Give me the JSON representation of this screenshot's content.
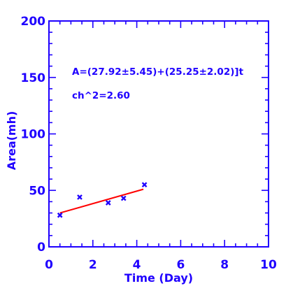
{
  "chart_data": {
    "type": "scatter",
    "xlabel": "Time (Day)",
    "ylabel": "Area(mh)",
    "xlim": [
      0,
      10
    ],
    "ylim": [
      0,
      200
    ],
    "x_ticks": [
      "0",
      "2",
      "4",
      "6",
      "8",
      "10"
    ],
    "y_ticks": [
      "0",
      "50",
      "100",
      "150",
      "200"
    ],
    "grid": false,
    "series": [
      {
        "marker": "x",
        "color": "#1f00ff",
        "x": [
          0.5,
          1.4,
          2.7,
          3.4,
          4.35
        ],
        "y": [
          28,
          44,
          39,
          43,
          55
        ]
      }
    ],
    "fit_line": {
      "color": "#ff0000",
      "x": [
        0.5,
        4.3
      ],
      "y": [
        30,
        51
      ]
    },
    "annotations": [
      "A=(27.92±5.45)+(25.25±2.02)]t",
      "ch^2=2.60"
    ],
    "colors": {
      "axes": "#1f00ff",
      "markers": "#1f00ff",
      "fit": "#ff0000"
    }
  }
}
